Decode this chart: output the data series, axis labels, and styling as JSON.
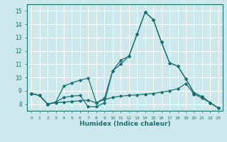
{
  "xlabel": "Humidex (Indice chaleur)",
  "xlim": [
    -0.5,
    23.5
  ],
  "ylim": [
    7.5,
    15.5
  ],
  "yticks": [
    8,
    9,
    10,
    11,
    12,
    13,
    14,
    15
  ],
  "xticks": [
    0,
    1,
    2,
    3,
    4,
    5,
    6,
    7,
    8,
    9,
    10,
    11,
    12,
    13,
    14,
    15,
    16,
    17,
    18,
    19,
    20,
    21,
    22,
    23
  ],
  "bg_color": "#cce8ec",
  "grid_color": "#ffffff",
  "line_color": "#1a7070",
  "line_top_y": [
    8.8,
    8.65,
    8.0,
    8.15,
    8.5,
    8.6,
    8.65,
    7.8,
    7.8,
    8.1,
    10.5,
    11.0,
    11.6,
    13.25,
    14.9,
    14.35,
    12.65,
    11.1,
    10.85,
    9.9,
    8.85,
    8.55,
    8.1,
    7.7
  ],
  "line_mid_y": [
    8.8,
    8.65,
    8.0,
    8.15,
    9.35,
    9.6,
    9.8,
    9.95,
    8.1,
    8.45,
    10.5,
    11.3,
    11.6,
    13.25,
    14.9,
    14.35,
    12.65,
    11.1,
    10.85,
    9.9,
    8.85,
    8.55,
    8.1,
    7.7
  ],
  "line_bot_y": [
    8.8,
    8.65,
    8.0,
    8.1,
    8.15,
    8.2,
    8.25,
    8.3,
    8.1,
    8.35,
    8.5,
    8.6,
    8.65,
    8.7,
    8.75,
    8.8,
    8.9,
    9.0,
    9.15,
    9.55,
    8.75,
    8.45,
    8.1,
    7.7
  ]
}
